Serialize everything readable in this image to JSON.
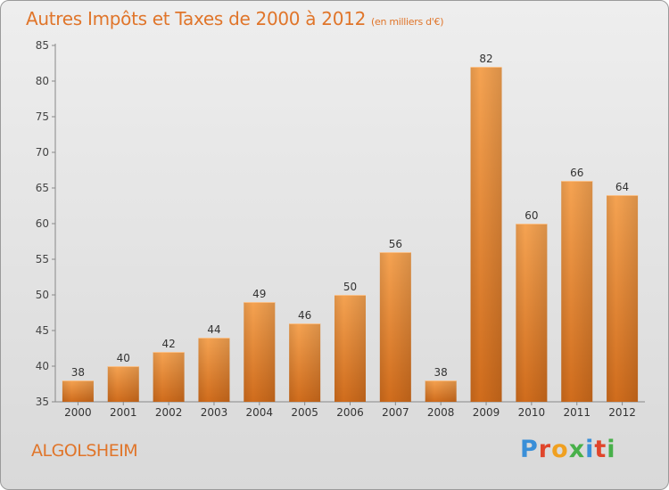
{
  "title": "Autres Impôts et Taxes de 2000 à 2012",
  "unit": "(en milliers d'€)",
  "commune": "ALGOLSHEIM",
  "logo": {
    "text": "Proxiti",
    "colors": [
      "#3a8fd8",
      "#e0452b",
      "#f0a020",
      "#48b04a",
      "#3a8fd8",
      "#e0452b",
      "#48b04a"
    ]
  },
  "colors": {
    "bar_top": "#f5a352",
    "bar_bottom": "#d06c1c",
    "accent": "#e0752a"
  },
  "chart_data": {
    "type": "bar",
    "categories": [
      "2000",
      "2001",
      "2002",
      "2003",
      "2004",
      "2005",
      "2006",
      "2007",
      "2008",
      "2009",
      "2010",
      "2011",
      "2012"
    ],
    "values": [
      38,
      40,
      42,
      44,
      49,
      46,
      50,
      56,
      38,
      82,
      60,
      66,
      64
    ],
    "ylim": [
      35,
      85
    ],
    "yticks": [
      35,
      40,
      45,
      50,
      55,
      60,
      65,
      70,
      75,
      80,
      85
    ],
    "grid": false,
    "value_labels": true
  }
}
